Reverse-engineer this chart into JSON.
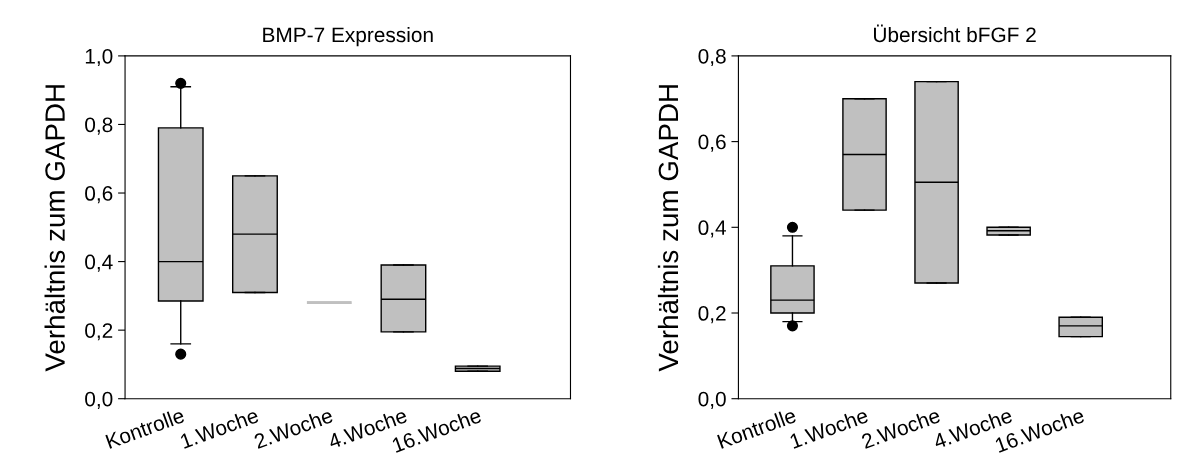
{
  "chart_data": [
    {
      "type": "box",
      "title": "BMP-7 Expression",
      "ylabel": "Verhältnis zum GAPDH",
      "categories": [
        "Kontrolle",
        "1.Woche",
        "2.Woche",
        "4.Woche",
        "16.Woche"
      ],
      "color": "#c0c0c0",
      "boxes": [
        {
          "low": 0.16,
          "q1": 0.285,
          "median": 0.4,
          "q3": 0.79,
          "high": 0.91,
          "outliers": [
            0.92,
            0.13
          ]
        },
        {
          "low": 0.31,
          "q1": 0.31,
          "median": 0.48,
          "q3": 0.65,
          "high": 0.65
        },
        {
          "low": 0.28,
          "q1": 0.28,
          "median": 0.28,
          "q3": 0.28,
          "high": 0.28
        },
        {
          "low": 0.195,
          "q1": 0.195,
          "median": 0.29,
          "q3": 0.39,
          "high": 0.39
        },
        {
          "low": 0.08,
          "q1": 0.08,
          "median": 0.088,
          "q3": 0.095,
          "high": 0.095
        }
      ],
      "ylim": [
        0,
        1.0
      ],
      "yticks": [
        {
          "value": 0,
          "label": "0,0"
        },
        {
          "value": 0.2,
          "label": "0,2"
        },
        {
          "value": 0.4,
          "label": "0,4"
        },
        {
          "value": 0.6,
          "label": "0,6"
        },
        {
          "value": 0.8,
          "label": "0,8"
        },
        {
          "value": 1.0,
          "label": "1,0"
        }
      ],
      "grid": false,
      "legend": false
    },
    {
      "type": "box",
      "title": "Übersicht bFGF 2",
      "ylabel": "Verhältnis zum GAPDH",
      "categories": [
        "Kontrolle",
        "1.Woche",
        "2.Woche",
        "4.Woche",
        "16.Woche"
      ],
      "color": "#c0c0c0",
      "boxes": [
        {
          "low": 0.18,
          "q1": 0.2,
          "median": 0.23,
          "q3": 0.31,
          "high": 0.38,
          "outliers": [
            0.4,
            0.17
          ]
        },
        {
          "low": 0.44,
          "q1": 0.44,
          "median": 0.57,
          "q3": 0.7,
          "high": 0.7
        },
        {
          "low": 0.27,
          "q1": 0.27,
          "median": 0.505,
          "q3": 0.74,
          "high": 0.74
        },
        {
          "low": 0.382,
          "q1": 0.382,
          "median": 0.392,
          "q3": 0.4,
          "high": 0.4
        },
        {
          "low": 0.145,
          "q1": 0.145,
          "median": 0.17,
          "q3": 0.19,
          "high": 0.19
        }
      ],
      "ylim": [
        0,
        0.8
      ],
      "yticks": [
        {
          "value": 0,
          "label": "0,0"
        },
        {
          "value": 0.2,
          "label": "0,2"
        },
        {
          "value": 0.4,
          "label": "0,4"
        },
        {
          "value": 0.6,
          "label": "0,6"
        },
        {
          "value": 0.8,
          "label": "0,8"
        }
      ],
      "grid": false,
      "legend": false
    }
  ]
}
